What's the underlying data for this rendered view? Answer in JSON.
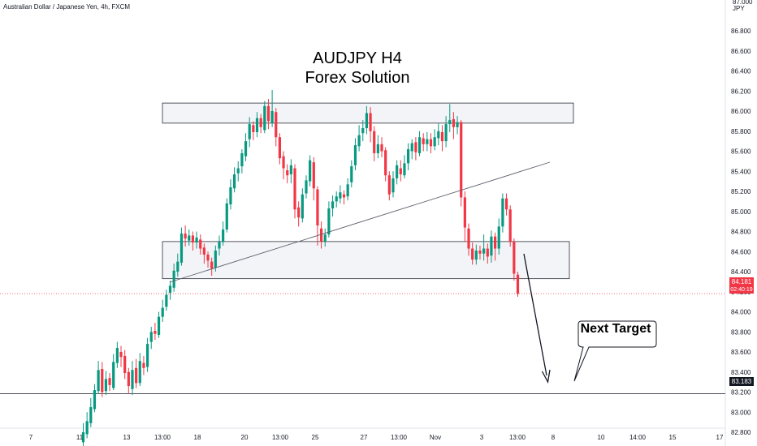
{
  "instrument": "Australian Dollar / Japanese Yen, 4h, FXCM",
  "title_line1": "AUDJPY H4",
  "title_line2": "Forex Solution",
  "callout": "Next Target",
  "price_axis": {
    "currency": "JPY",
    "top_value": "87.000",
    "labels": [
      "86.800",
      "86.600",
      "86.400",
      "86.200",
      "86.000",
      "85.800",
      "85.600",
      "85.400",
      "85.200",
      "85.000",
      "84.800",
      "84.600",
      "84.400",
      "84.200",
      "84.000",
      "83.800",
      "83.600",
      "83.400",
      "83.200",
      "83.000",
      "82.800"
    ],
    "current_price": "84.181",
    "countdown": "02:40:19",
    "target_price": "83.183",
    "colors": {
      "current": "#f23645",
      "target": "#131722"
    }
  },
  "time_axis": {
    "labels": [
      "7",
      "11",
      "13",
      "13:00",
      "18",
      "20",
      "13:00",
      "25",
      "27",
      "13:00",
      "Nov",
      "3",
      "13:00",
      "8",
      "10",
      "14:00",
      "15",
      "17"
    ]
  },
  "chart_data": {
    "type": "candlestick",
    "title": "AUDJPY H4\nForex Solution",
    "ylim": [
      82.75,
      87.05
    ],
    "resistance_zone": [
      85.88,
      86.08
    ],
    "support_zone": [
      84.33,
      84.7
    ],
    "target_level": 83.183,
    "current_level": 84.181,
    "colors": {
      "up": "#089981",
      "down": "#f23645"
    },
    "candles": [
      [
        82.7,
        82.8,
        82.66,
        82.89
      ],
      [
        82.78,
        82.91,
        82.74,
        83.0
      ],
      [
        82.89,
        83.05,
        82.85,
        83.14
      ],
      [
        83.03,
        83.22,
        83.0,
        83.28
      ],
      [
        83.21,
        83.42,
        83.18,
        83.51
      ],
      [
        83.43,
        83.2,
        83.15,
        83.5
      ],
      [
        83.21,
        83.33,
        83.17,
        83.41
      ],
      [
        83.34,
        83.27,
        83.21,
        83.39
      ],
      [
        83.24,
        83.5,
        83.22,
        83.58
      ],
      [
        83.49,
        83.64,
        83.44,
        83.7
      ],
      [
        83.6,
        83.55,
        83.45,
        83.66
      ],
      [
        83.56,
        83.39,
        83.33,
        83.62
      ],
      [
        83.4,
        83.26,
        83.18,
        83.44
      ],
      [
        83.23,
        83.42,
        83.17,
        83.51
      ],
      [
        83.44,
        83.29,
        83.24,
        83.53
      ],
      [
        83.29,
        83.51,
        83.26,
        83.59
      ],
      [
        83.49,
        83.44,
        83.37,
        83.56
      ],
      [
        83.45,
        83.68,
        83.4,
        83.74
      ],
      [
        83.7,
        83.8,
        83.63,
        83.85
      ],
      [
        83.81,
        83.78,
        83.72,
        83.89
      ],
      [
        83.77,
        83.95,
        83.74,
        84.0
      ],
      [
        83.95,
        84.04,
        83.9,
        84.12
      ],
      [
        84.05,
        84.17,
        84.01,
        84.22
      ],
      [
        84.19,
        84.26,
        84.12,
        84.31
      ],
      [
        84.24,
        84.41,
        84.2,
        84.48
      ],
      [
        84.4,
        84.5,
        84.35,
        84.58
      ],
      [
        84.49,
        84.78,
        84.46,
        84.84
      ],
      [
        84.78,
        84.73,
        84.65,
        84.86
      ],
      [
        84.71,
        84.76,
        84.66,
        84.82
      ],
      [
        84.76,
        84.69,
        84.61,
        84.8
      ],
      [
        84.69,
        84.74,
        84.63,
        84.8
      ],
      [
        84.72,
        84.63,
        84.57,
        84.77
      ],
      [
        84.64,
        84.57,
        84.48,
        84.68
      ],
      [
        84.57,
        84.51,
        84.44,
        84.6
      ],
      [
        84.5,
        84.43,
        84.36,
        84.54
      ],
      [
        84.44,
        84.61,
        84.4,
        84.66
      ],
      [
        84.63,
        84.7,
        84.56,
        84.76
      ],
      [
        84.7,
        84.82,
        84.66,
        84.9
      ],
      [
        84.82,
        85.08,
        84.79,
        85.13
      ],
      [
        85.07,
        85.24,
        85.02,
        85.32
      ],
      [
        85.23,
        85.37,
        85.19,
        85.44
      ],
      [
        85.38,
        85.43,
        85.3,
        85.5
      ],
      [
        85.45,
        85.58,
        85.38,
        85.62
      ],
      [
        85.55,
        85.7,
        85.5,
        85.78
      ],
      [
        85.72,
        85.87,
        85.64,
        85.94
      ],
      [
        85.86,
        85.79,
        85.71,
        85.9
      ],
      [
        85.79,
        85.93,
        85.74,
        85.99
      ],
      [
        85.93,
        85.84,
        85.78,
        85.97
      ],
      [
        85.81,
        86.05,
        85.78,
        86.1
      ],
      [
        86.05,
        85.9,
        85.82,
        86.12
      ],
      [
        85.88,
        86.0,
        85.84,
        86.21
      ],
      [
        85.99,
        85.74,
        85.65,
        86.03
      ],
      [
        85.74,
        85.53,
        85.47,
        85.78
      ],
      [
        85.55,
        85.43,
        85.32,
        85.6
      ],
      [
        85.41,
        85.36,
        85.28,
        85.47
      ],
      [
        85.37,
        85.46,
        85.28,
        85.52
      ],
      [
        85.43,
        85.02,
        84.93,
        85.47
      ],
      [
        85.04,
        84.94,
        84.85,
        85.1
      ],
      [
        84.93,
        85.17,
        84.89,
        85.23
      ],
      [
        85.18,
        85.31,
        85.13,
        85.36
      ],
      [
        85.3,
        85.51,
        85.25,
        85.56
      ],
      [
        85.49,
        85.23,
        85.11,
        85.54
      ],
      [
        85.22,
        84.86,
        84.66,
        85.25
      ],
      [
        84.83,
        84.7,
        84.63,
        84.9
      ],
      [
        84.7,
        84.77,
        84.65,
        84.83
      ],
      [
        84.77,
        85.03,
        84.74,
        85.1
      ],
      [
        85.03,
        85.1,
        84.95,
        85.16
      ],
      [
        85.1,
        85.15,
        85.04,
        85.2
      ],
      [
        85.13,
        85.19,
        85.08,
        85.26
      ],
      [
        85.17,
        85.14,
        85.07,
        85.21
      ],
      [
        85.15,
        85.27,
        85.11,
        85.33
      ],
      [
        85.29,
        85.45,
        85.24,
        85.51
      ],
      [
        85.46,
        85.66,
        85.41,
        85.73
      ],
      [
        85.65,
        85.76,
        85.6,
        85.86
      ],
      [
        85.78,
        85.83,
        85.7,
        85.91
      ],
      [
        85.83,
        85.98,
        85.77,
        86.05
      ],
      [
        85.98,
        85.8,
        85.69,
        86.04
      ],
      [
        85.8,
        85.58,
        85.5,
        85.85
      ],
      [
        85.58,
        85.67,
        85.53,
        85.76
      ],
      [
        85.67,
        85.6,
        85.54,
        85.74
      ],
      [
        85.61,
        85.36,
        85.3,
        85.64
      ],
      [
        85.36,
        85.17,
        85.11,
        85.4
      ],
      [
        85.19,
        85.33,
        85.14,
        85.4
      ],
      [
        85.33,
        85.46,
        85.27,
        85.51
      ],
      [
        85.43,
        85.37,
        85.3,
        85.51
      ],
      [
        85.36,
        85.48,
        85.33,
        85.56
      ],
      [
        85.48,
        85.62,
        85.41,
        85.68
      ],
      [
        85.6,
        85.68,
        85.52,
        85.72
      ],
      [
        85.69,
        85.59,
        85.51,
        85.74
      ],
      [
        85.58,
        85.74,
        85.55,
        85.8
      ],
      [
        85.73,
        85.67,
        85.6,
        85.78
      ],
      [
        85.67,
        85.72,
        85.6,
        85.79
      ],
      [
        85.72,
        85.65,
        85.58,
        85.78
      ],
      [
        85.65,
        85.74,
        85.61,
        85.82
      ],
      [
        85.73,
        85.8,
        85.66,
        85.88
      ],
      [
        85.79,
        85.7,
        85.6,
        85.86
      ],
      [
        85.7,
        85.87,
        85.64,
        85.95
      ],
      [
        85.87,
        85.91,
        85.79,
        86.07
      ],
      [
        85.92,
        85.84,
        85.72,
        85.99
      ],
      [
        85.84,
        85.89,
        85.77,
        85.95
      ],
      [
        85.89,
        85.14,
        85.05,
        85.91
      ],
      [
        85.14,
        84.84,
        84.7,
        85.2
      ],
      [
        84.83,
        84.63,
        84.56,
        84.88
      ],
      [
        84.63,
        84.52,
        84.47,
        84.69
      ],
      [
        84.52,
        84.61,
        84.47,
        84.67
      ],
      [
        84.61,
        84.58,
        84.52,
        84.66
      ],
      [
        84.58,
        84.63,
        84.51,
        84.77
      ],
      [
        84.63,
        84.55,
        84.48,
        84.68
      ],
      [
        84.56,
        84.75,
        84.49,
        84.81
      ],
      [
        84.75,
        84.63,
        84.51,
        84.79
      ],
      [
        84.63,
        84.85,
        84.57,
        84.93
      ],
      [
        84.85,
        85.13,
        84.79,
        85.18
      ],
      [
        85.13,
        85.02,
        84.96,
        85.18
      ],
      [
        85.02,
        84.7,
        84.65,
        85.06
      ],
      [
        84.7,
        84.38,
        84.31,
        84.73
      ],
      [
        84.37,
        84.18,
        84.15,
        84.4
      ]
    ]
  }
}
